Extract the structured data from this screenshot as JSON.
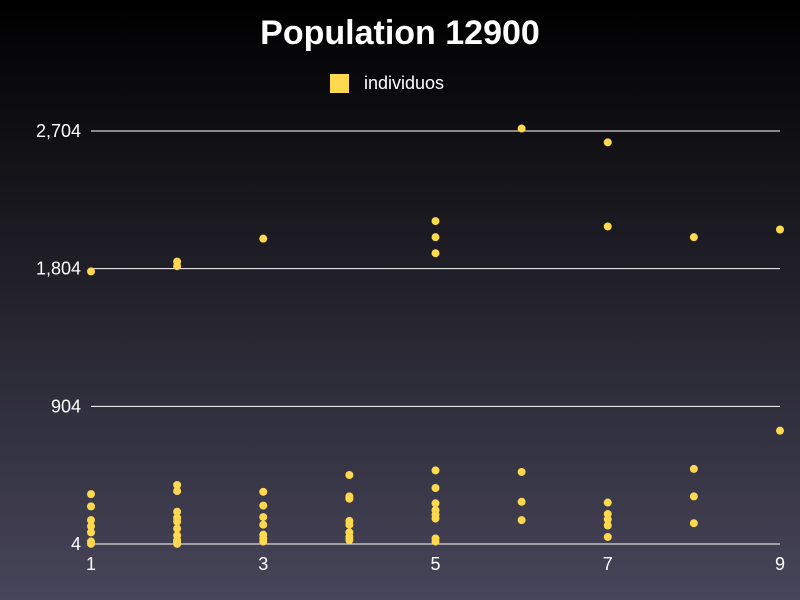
{
  "chart_data": {
    "type": "scatter",
    "title": "Population 12900",
    "xlabel": "",
    "ylabel": "",
    "xlim": [
      1,
      9
    ],
    "ylim": [
      4,
      2704
    ],
    "x_ticks": [
      "1",
      "3",
      "5",
      "7",
      "9"
    ],
    "y_ticks": [
      "4",
      "904",
      "1,804",
      "2,704"
    ],
    "y_tick_values": [
      4,
      904,
      1804,
      2704
    ],
    "x_tick_values": [
      1,
      3,
      5,
      7,
      9
    ],
    "grid": "horizontal",
    "legend_position": "top-center",
    "series": [
      {
        "name": "individuos",
        "color": "#fed84f",
        "points": [
          [
            1,
            1786
          ],
          [
            1,
            330
          ],
          [
            1,
            250
          ],
          [
            1,
            160
          ],
          [
            1,
            120
          ],
          [
            1,
            80
          ],
          [
            1,
            20
          ],
          [
            1,
            5
          ],
          [
            2,
            1850
          ],
          [
            2,
            1820
          ],
          [
            2,
            390
          ],
          [
            2,
            350
          ],
          [
            2,
            215
          ],
          [
            2,
            175
          ],
          [
            2,
            150
          ],
          [
            2,
            105
          ],
          [
            2,
            60
          ],
          [
            2,
            30
          ],
          [
            2,
            20
          ],
          [
            2,
            5
          ],
          [
            3,
            2000
          ],
          [
            3,
            345
          ],
          [
            3,
            255
          ],
          [
            3,
            180
          ],
          [
            3,
            130
          ],
          [
            3,
            65
          ],
          [
            3,
            40
          ],
          [
            3,
            20
          ],
          [
            4,
            455
          ],
          [
            4,
            315
          ],
          [
            4,
            300
          ],
          [
            4,
            155
          ],
          [
            4,
            130
          ],
          [
            4,
            80
          ],
          [
            4,
            50
          ],
          [
            4,
            30
          ],
          [
            5,
            2115
          ],
          [
            5,
            2010
          ],
          [
            5,
            1905
          ],
          [
            5,
            485
          ],
          [
            5,
            370
          ],
          [
            5,
            270
          ],
          [
            5,
            225
          ],
          [
            5,
            195
          ],
          [
            5,
            170
          ],
          [
            5,
            40
          ],
          [
            5,
            20
          ],
          [
            6,
            2720
          ],
          [
            6,
            475
          ],
          [
            6,
            280
          ],
          [
            6,
            160
          ],
          [
            7,
            2630
          ],
          [
            7,
            2080
          ],
          [
            7,
            275
          ],
          [
            7,
            200
          ],
          [
            7,
            165
          ],
          [
            7,
            125
          ],
          [
            7,
            50
          ],
          [
            8,
            2010
          ],
          [
            8,
            495
          ],
          [
            8,
            315
          ],
          [
            8,
            140
          ],
          [
            9,
            2060
          ],
          [
            9,
            745
          ]
        ]
      }
    ]
  }
}
